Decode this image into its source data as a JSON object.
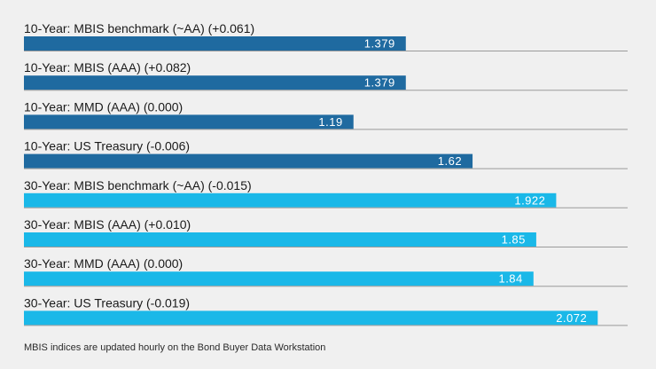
{
  "chart_data": {
    "type": "bar",
    "orientation": "horizontal",
    "categories": [
      "10-Year: MBIS benchmark (~AA) (+0.061)",
      "10-Year: MBIS (AAA) (+0.082)",
      "10-Year: MMD (AAA) (0.000)",
      "10-Year: US Treasury (-0.006)",
      "30-Year: MBIS benchmark (~AA) (-0.015)",
      "30-Year: MBIS (AAA) (+0.010)",
      "30-Year: MMD (AAA) (0.000)",
      "30-Year: US Treasury (-0.019)"
    ],
    "values": [
      1.379,
      1.379,
      1.19,
      1.62,
      1.922,
      1.85,
      1.84,
      2.072
    ],
    "value_labels": [
      "1.379",
      "1.379",
      "1.19",
      "1.62",
      "1.922",
      "1.85",
      "1.84",
      "2.072"
    ],
    "groups": [
      "10-Year",
      "10-Year",
      "10-Year",
      "10-Year",
      "30-Year",
      "30-Year",
      "30-Year",
      "30-Year"
    ],
    "colors": {
      "10-Year": "#1f6aa0",
      "30-Year": "#1ab8e8",
      "divider": "#9a9a9a"
    },
    "xlim": [
      0,
      2.18
    ],
    "grid": false,
    "legend": "none"
  },
  "footnote": "MBIS indices are updated hourly on the Bond Buyer Data Workstation"
}
